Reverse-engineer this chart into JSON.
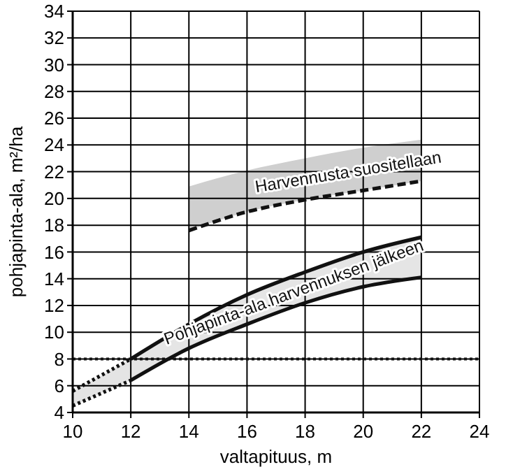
{
  "chart_data": {
    "type": "line",
    "xlabel": "valtapituus, m",
    "ylabel": "pohjapinta-ala, m²/ha",
    "xlim": [
      10,
      24
    ],
    "xticks": [
      10,
      12,
      14,
      16,
      18,
      20,
      22,
      24
    ],
    "ylim": [
      4,
      34
    ],
    "yticks": [
      4,
      6,
      8,
      10,
      12,
      14,
      16,
      18,
      20,
      22,
      24,
      26,
      28,
      30,
      32,
      34
    ],
    "grid": true,
    "marker": "none",
    "series": [
      {
        "color": "#111111",
        "line_style": "dashed",
        "x": [
          14,
          16,
          18,
          20,
          22
        ],
        "values": [
          17.6,
          19.0,
          19.9,
          20.6,
          21.3
        ],
        "lower": [
          17.6,
          19.0,
          19.9,
          20.6,
          21.3
        ],
        "upper": [
          20.9,
          22.1,
          23.0,
          23.8,
          24.4
        ]
      },
      {
        "color": "#111111",
        "line_style": "dotted",
        "x": [
          10,
          12
        ],
        "values": [
          5.6,
          8.0
        ],
        "lower": [
          4.5,
          6.4
        ],
        "upper": [
          5.6,
          8.0
        ]
      },
      {
        "color": "#111111",
        "line_style": "dotted",
        "x": [
          10,
          12
        ],
        "values": [
          4.5,
          6.4
        ]
      },
      {
        "color": "#111111",
        "line_style": "solid",
        "x": [
          12,
          14,
          16,
          18,
          20,
          22
        ],
        "values": [
          8.0,
          10.6,
          12.8,
          14.5,
          16.0,
          17.1
        ],
        "lower": [
          6.4,
          8.8,
          10.6,
          12.2,
          13.4,
          14.1
        ],
        "upper": [
          8.0,
          10.6,
          12.8,
          14.5,
          16.0,
          17.1
        ]
      },
      {
        "color": "#111111",
        "line_style": "solid",
        "x": [
          12,
          14,
          16,
          18,
          20,
          22
        ],
        "values": [
          6.4,
          8.8,
          10.6,
          12.2,
          13.4,
          14.1
        ]
      }
    ],
    "ref_lines": [
      {
        "axis": "y",
        "value": 8,
        "line_style": "dotted",
        "color": "#111111"
      }
    ],
    "annotations": [
      "Harvennusta suositellaan",
      "Pohjapinta-ala harvennuksen jälkeen"
    ]
  }
}
